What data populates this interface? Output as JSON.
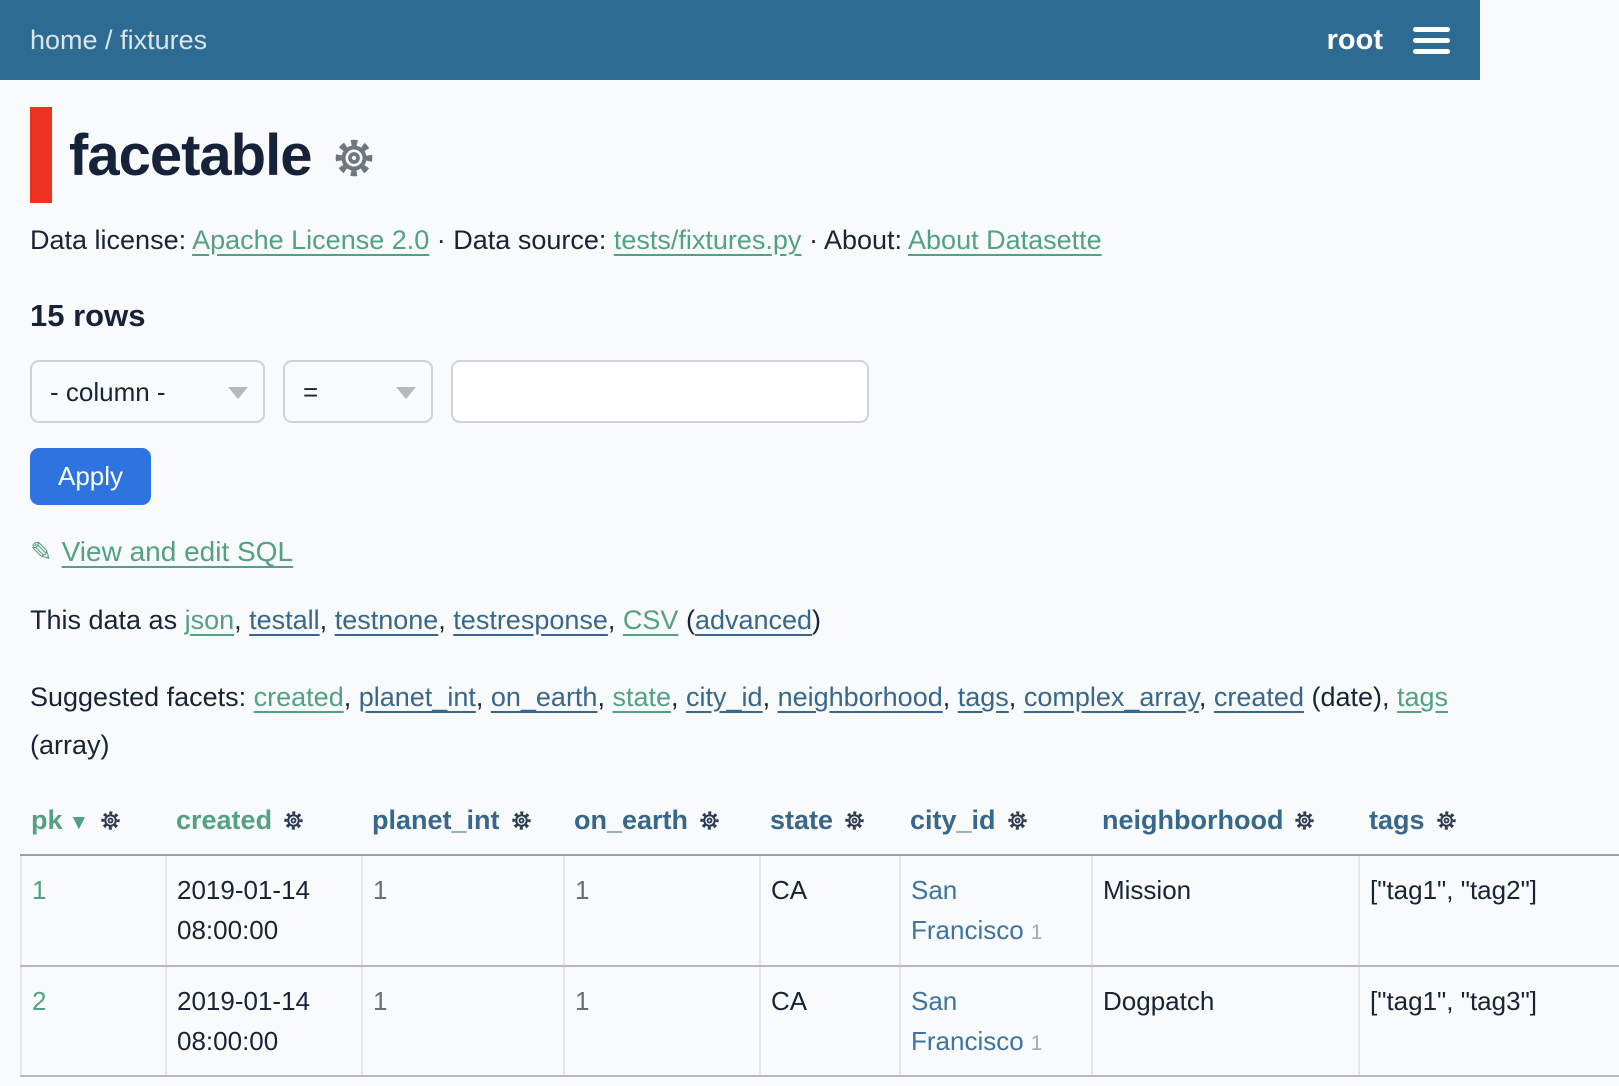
{
  "nav": {
    "breadcrumb": [
      {
        "label": "home"
      },
      {
        "label": "fixtures"
      }
    ],
    "separator": " / ",
    "user": "root"
  },
  "page": {
    "title": "facetable"
  },
  "meta": {
    "license_label": "Data license: ",
    "license_link": "Apache License 2.0",
    "dot1": " · ",
    "source_label": "Data source: ",
    "source_link": "tests/fixtures.py",
    "dot2": " · ",
    "about_label": "About: ",
    "about_link": "About Datasette"
  },
  "summary": {
    "row_count": "15 rows"
  },
  "filter": {
    "column_select": "- column -",
    "op_select": "=",
    "value": "",
    "apply_label": "Apply",
    "edit_sql_label": "View and edit SQL"
  },
  "export": {
    "prefix": "This data as ",
    "links": [
      {
        "label": "json",
        "cls": "green",
        "after": ", "
      },
      {
        "label": "testall",
        "cls": "blue",
        "after": ", "
      },
      {
        "label": "testnone",
        "cls": "blue",
        "after": ", "
      },
      {
        "label": "testresponse",
        "cls": "blue",
        "after": ", "
      },
      {
        "label": "CSV",
        "cls": "green",
        "after": " ("
      },
      {
        "label": "advanced",
        "cls": "blue",
        "after": ")"
      }
    ]
  },
  "facets": {
    "prefix": "Suggested facets: ",
    "links": [
      {
        "label": "created",
        "cls": "green",
        "after": ", "
      },
      {
        "label": "planet_int",
        "cls": "blue",
        "after": ", "
      },
      {
        "label": "on_earth",
        "cls": "blue",
        "after": ", "
      },
      {
        "label": "state",
        "cls": "green",
        "after": ", "
      },
      {
        "label": "city_id",
        "cls": "blue",
        "after": ", "
      },
      {
        "label": "neighborhood",
        "cls": "blue",
        "after": ", "
      },
      {
        "label": "tags",
        "cls": "blue",
        "after": ", "
      },
      {
        "label": "complex_array",
        "cls": "blue",
        "after": ", "
      },
      {
        "label": "created",
        "cls": "blue",
        "after": " (date), "
      },
      {
        "label": "tags",
        "cls": "green",
        "after": " (array)"
      }
    ]
  },
  "table": {
    "sort_icon": "▼",
    "columns": [
      {
        "label": "pk",
        "cls": "green",
        "sorted": "desc"
      },
      {
        "label": "created",
        "cls": "green"
      },
      {
        "label": "planet_int",
        "cls": "blue"
      },
      {
        "label": "on_earth",
        "cls": "blue"
      },
      {
        "label": "state",
        "cls": "blue"
      },
      {
        "label": "city_id",
        "cls": "blue"
      },
      {
        "label": "neighborhood",
        "cls": "blue"
      },
      {
        "label": "tags",
        "cls": "blue"
      }
    ],
    "rows": [
      [
        {
          "text": "1",
          "style": "link-green"
        },
        {
          "text": "2019-01-14 08:00:00",
          "style": "plain"
        },
        {
          "text": "1",
          "style": "muted"
        },
        {
          "text": "1",
          "style": "muted"
        },
        {
          "text": "CA",
          "style": "plain"
        },
        {
          "text": "San Francisco",
          "style": "link-blue",
          "badge": "1"
        },
        {
          "text": "Mission",
          "style": "plain"
        },
        {
          "text": "[\"tag1\", \"tag2\"]",
          "style": "plain"
        }
      ],
      [
        {
          "text": "2",
          "style": "link-green"
        },
        {
          "text": "2019-01-14 08:00:00",
          "style": "plain"
        },
        {
          "text": "1",
          "style": "muted"
        },
        {
          "text": "1",
          "style": "muted"
        },
        {
          "text": "CA",
          "style": "plain"
        },
        {
          "text": "San Francisco",
          "style": "link-blue",
          "badge": "1"
        },
        {
          "text": "Dogpatch",
          "style": "plain"
        },
        {
          "text": "[\"tag1\", \"tag3\"]",
          "style": "plain"
        }
      ]
    ]
  },
  "icons": {
    "pencil": "✎",
    "menu": "hamburger-icon",
    "gear": "gear-icon",
    "sort_desc": "sort-desc-icon",
    "select_chevron": "chevron-down-icon"
  },
  "colors": {
    "nav_bg": "#2d6b93",
    "link_green": "#53a183",
    "link_blue": "#38678c",
    "accent_red": "#ee3220",
    "apply_blue": "#2e74e0",
    "text_dark": "#182338"
  }
}
